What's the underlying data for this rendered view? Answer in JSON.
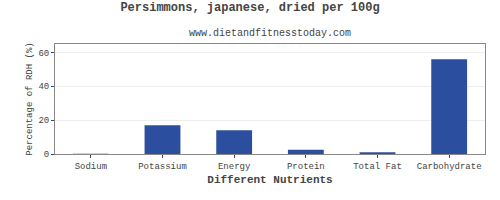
{
  "chart_data": {
    "type": "bar",
    "title": "Persimmons, japanese, dried per 100g",
    "subtitle": "www.dietandfitnesstoday.com",
    "xlabel": "Different Nutrients",
    "ylabel": "Percentage of RDH (%)",
    "categories": [
      "Sodium",
      "Potassium",
      "Energy",
      "Protein",
      "Total Fat",
      "Carbohydrate"
    ],
    "values": [
      0.2,
      17,
      14,
      2.5,
      1.0,
      56
    ],
    "color": "#2b4f9e",
    "ylim": [
      0,
      65
    ],
    "yticks": [
      0,
      20,
      40,
      60
    ],
    "grid": true
  }
}
